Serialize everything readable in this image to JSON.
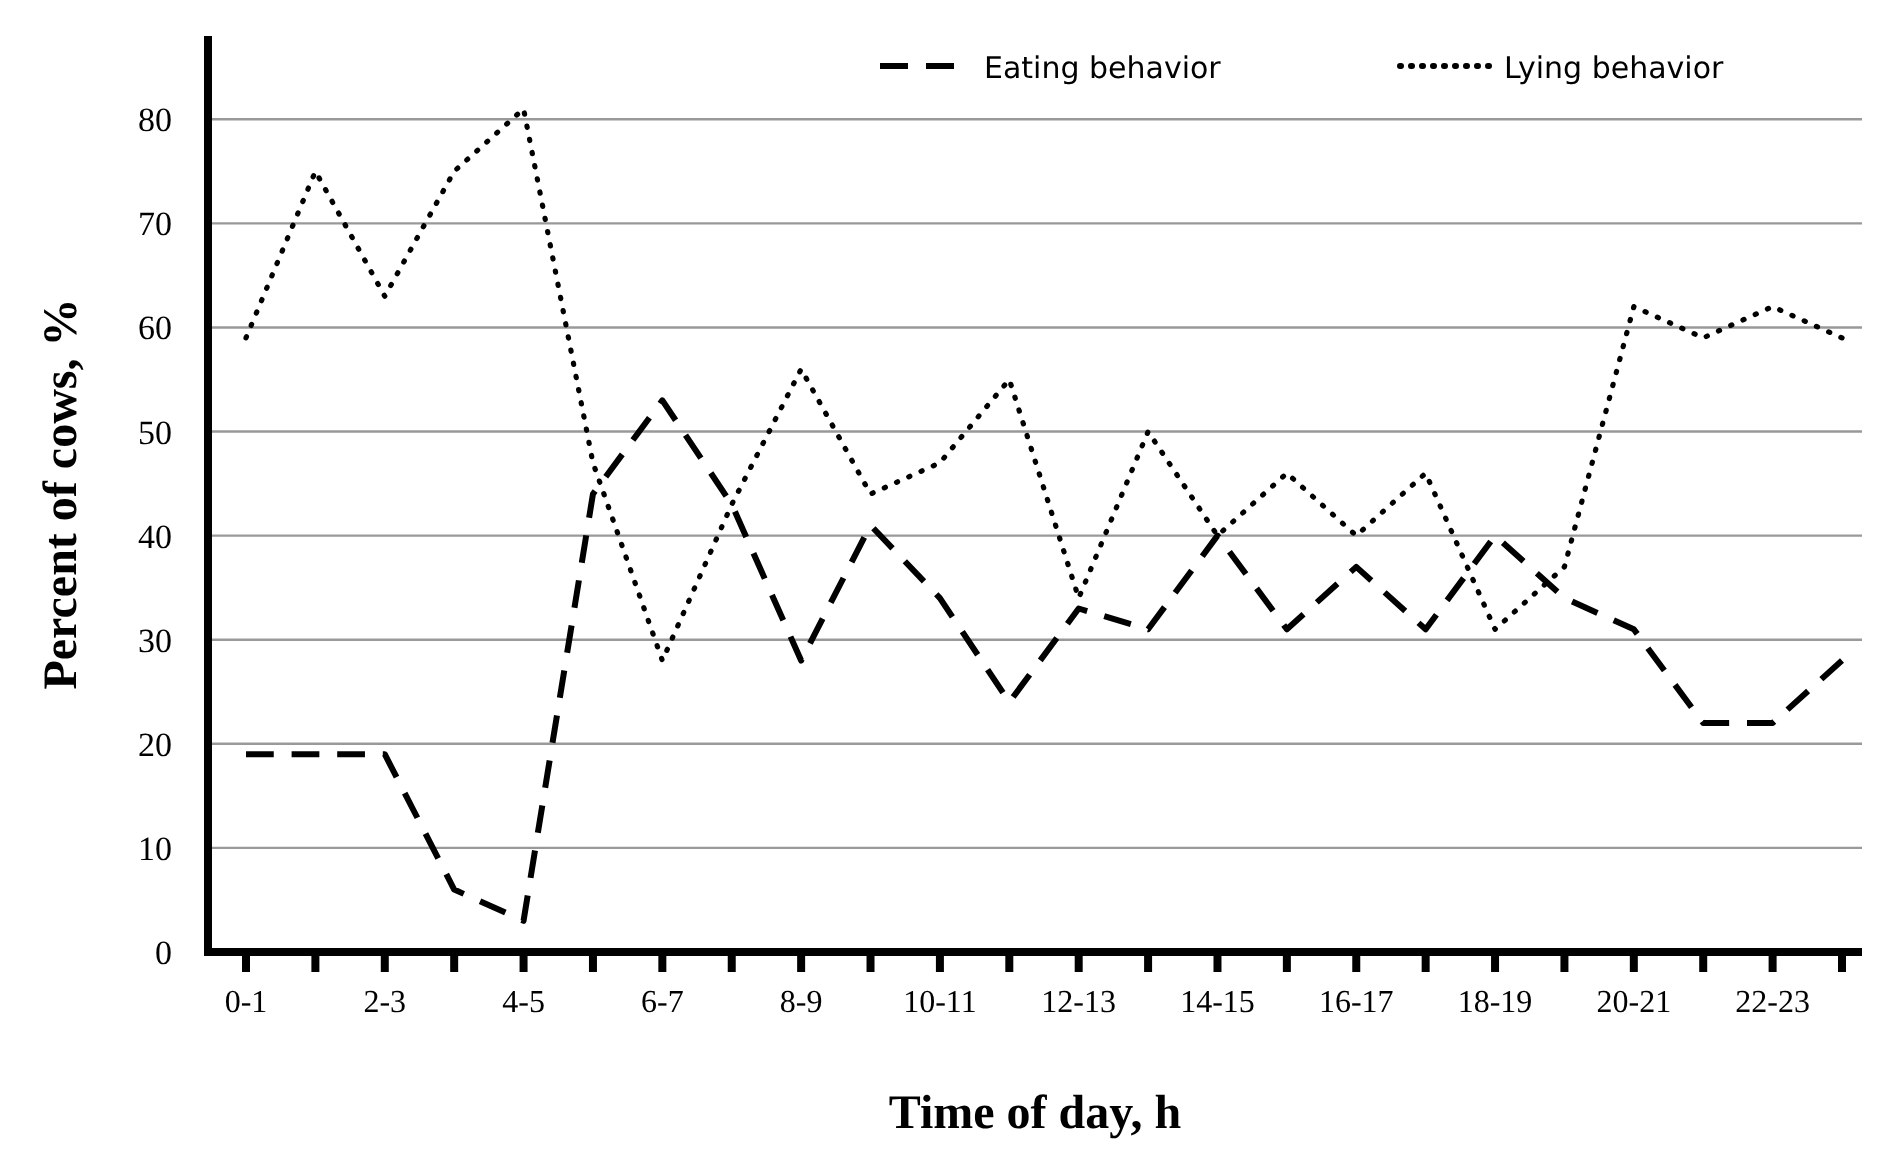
{
  "chart_data": {
    "type": "line",
    "xlabel": "Time of day, h",
    "ylabel": "Percent of cows, %",
    "categories": [
      "0-1",
      null,
      "2-3",
      null,
      "4-5",
      null,
      "6-7",
      null,
      "8-9",
      null,
      "10-11",
      null,
      "12-13",
      null,
      "14-15",
      null,
      "16-17",
      null,
      "18-19",
      null,
      "20-21",
      null,
      "22-23",
      null
    ],
    "series": [
      {
        "name": "Eating behavior",
        "color": "#000000",
        "line_style": "dashed",
        "values": [
          19,
          19,
          19,
          6,
          3,
          44,
          53,
          43,
          28,
          41,
          34,
          24,
          33,
          31,
          40,
          31,
          37,
          31,
          40,
          34,
          31,
          22,
          22,
          28
        ]
      },
      {
        "name": "Lying behavior",
        "color": "#000000",
        "line_style": "dotted",
        "values": [
          59,
          75,
          63,
          75,
          81,
          47,
          28,
          43,
          56,
          44,
          47,
          55,
          34,
          50,
          40,
          46,
          40,
          46,
          31,
          37,
          62,
          59,
          62,
          59
        ]
      }
    ],
    "ylim": [
      0,
      88
    ],
    "yticks": [
      0,
      10,
      20,
      30,
      40,
      50,
      60,
      70,
      80
    ],
    "grid": "y",
    "legend": "top right",
    "marker": "none"
  }
}
